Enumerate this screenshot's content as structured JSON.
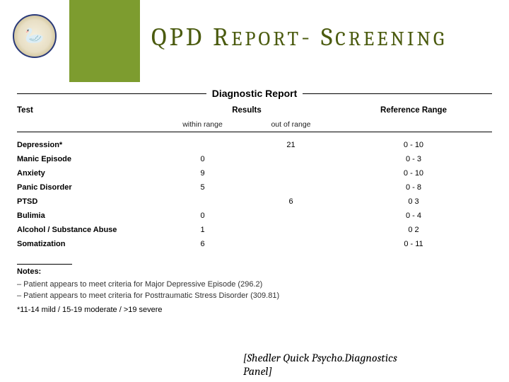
{
  "header": {
    "title_main": "QPD R",
    "title_sc1": "EPORT",
    "title_dash": "- S",
    "title_sc2": "CREENING",
    "green_block_color": "#7d9c2f",
    "title_color": "#4b5b0f",
    "logo_icon": "swan"
  },
  "report": {
    "heading": "Diagnostic Report",
    "columns": {
      "test": "Test",
      "results": "Results",
      "reference": "Reference Range",
      "sub_within": "within range",
      "sub_out": "out of range"
    },
    "rows": [
      {
        "test": "Depression*",
        "within": "",
        "out": "21",
        "ref": "0 - 10"
      },
      {
        "test": "Manic Episode",
        "within": "0",
        "out": "",
        "ref": "0 - 3"
      },
      {
        "test": "Anxiety",
        "within": "9",
        "out": "",
        "ref": "0 - 10"
      },
      {
        "test": "Panic Disorder",
        "within": "5",
        "out": "",
        "ref": "0 - 8"
      },
      {
        "test": "PTSD",
        "within": "",
        "out": "6",
        "ref": "0   3"
      },
      {
        "test": "Bulimia",
        "within": "0",
        "out": "",
        "ref": "0 - 4"
      },
      {
        "test": "Alcohol / Substance Abuse",
        "within": "1",
        "out": "",
        "ref": "0   2"
      },
      {
        "test": "Somatization",
        "within": "6",
        "out": "",
        "ref": "0 - 11"
      }
    ],
    "notes_label": "Notes:",
    "notes": [
      "– Patient appears to meet criteria for Major Depressive Episode (296.2)",
      "– Patient appears to meet criteria for Posttraumatic Stress Disorder (309.81)"
    ],
    "severity_key": "*11-14 mild / 15-19 moderate / >19 severe"
  },
  "footer": {
    "line1": "[Shedler Quick Psycho.Diagnostics",
    "line2": "Panel]"
  },
  "style": {
    "page_bg": "#ffffff",
    "text_color": "#000000",
    "rule_color": "#000000"
  }
}
